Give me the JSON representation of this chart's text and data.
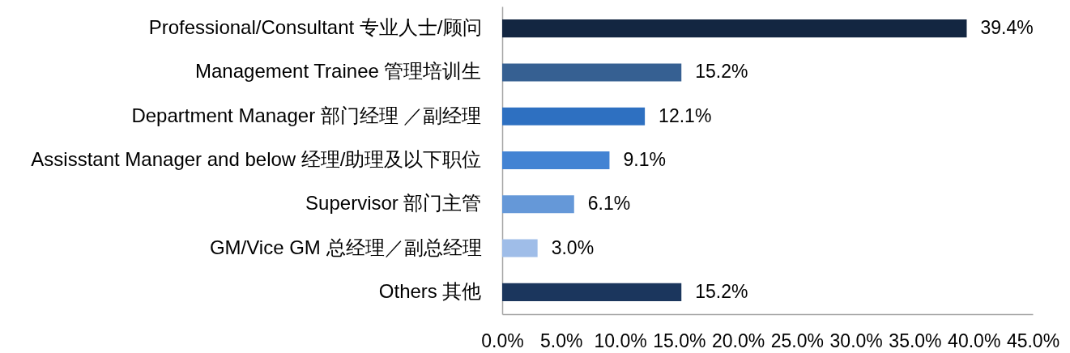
{
  "chart_data": {
    "type": "bar",
    "orientation": "horizontal",
    "categories": [
      "Professional/Consultant 专业人士/顾问",
      "Management Trainee 管理培训生",
      "Department Manager 部门经理 ／副经理",
      "Assisstant Manager and below 经理/助理及以下职位",
      "Supervisor 部门主管",
      "GM/Vice GM 总经理／副总经理",
      "Others 其他"
    ],
    "values": [
      39.4,
      15.2,
      12.1,
      9.1,
      6.1,
      3.0,
      15.2
    ],
    "value_labels": [
      "39.4%",
      "15.2%",
      "12.1%",
      "9.1%",
      "6.1%",
      "3.0%",
      "15.2%"
    ],
    "colors": [
      "#132641",
      "#366092",
      "#2e70c1",
      "#4383d3",
      "#6598d8",
      "#9fbde8",
      "#1b365d"
    ],
    "xlim": [
      0,
      45
    ],
    "xticks": [
      {
        "value": 0,
        "label": "0.0%"
      },
      {
        "value": 5,
        "label": "5.0%"
      },
      {
        "value": 10,
        "label": "10.0%"
      },
      {
        "value": 15,
        "label": "15.0%"
      },
      {
        "value": 20,
        "label": "20.0%"
      },
      {
        "value": 25,
        "label": "25.0%"
      },
      {
        "value": 30,
        "label": "30.0%"
      },
      {
        "value": 35,
        "label": "35.0%"
      },
      {
        "value": 40,
        "label": "40.0%"
      },
      {
        "value": 45,
        "label": "45.0%"
      }
    ],
    "grid": false
  }
}
